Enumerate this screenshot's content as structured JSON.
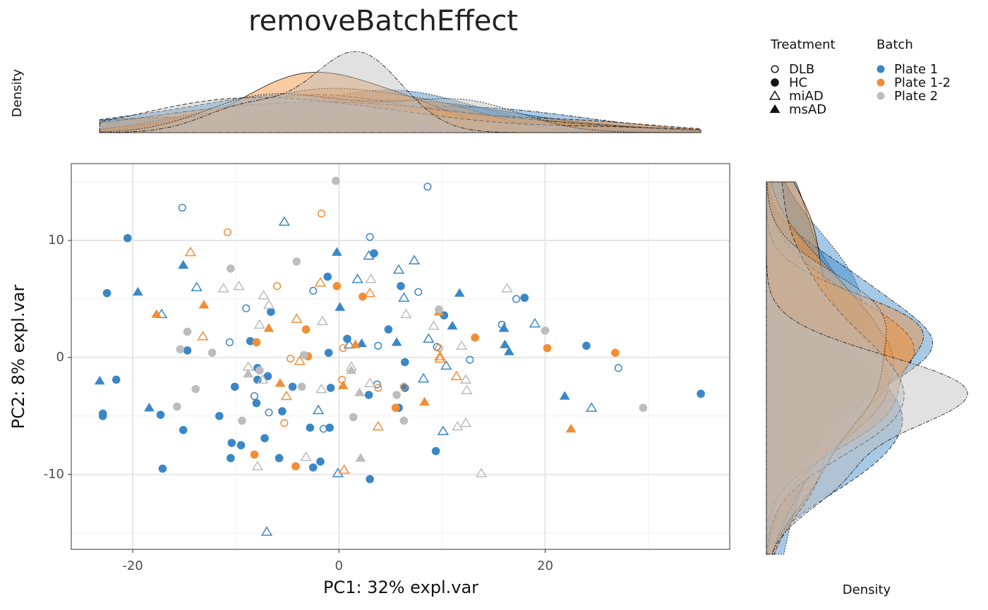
{
  "chart_data": {
    "type": "scatter",
    "title": "removeBatchEffect",
    "x_label": "PC1: 32% expl.var",
    "y_label": "PC2: 8% expl.var",
    "top_density_label": "Density",
    "right_density_label": "Density",
    "xlim": [
      -25.96,
      37.9
    ],
    "ylim": [
      -16.4,
      16.57
    ],
    "xticks": [
      -20,
      0,
      20
    ],
    "yticks": [
      -10,
      0,
      10
    ],
    "x_minor_ticks": [
      -10,
      10,
      30
    ],
    "y_minor_ticks": [
      -15,
      -5,
      5,
      15
    ],
    "grid": true,
    "treatment_title": "Treatment",
    "batch_title": "Batch",
    "treatments": [
      {
        "name": "DLB",
        "shape": "open-circle",
        "linetype": "solid"
      },
      {
        "name": "HC",
        "shape": "filled-circle",
        "linetype": "dashed"
      },
      {
        "name": "miAD",
        "shape": "open-triangle",
        "linetype": "dotted"
      },
      {
        "name": "msAD",
        "shape": "filled-triangle",
        "linetype": "dotdash"
      }
    ],
    "series": [
      {
        "name": "Plate 1",
        "color": "#3a87c8",
        "x": [
          -15.2,
          -20.5,
          -22.5,
          -15.1,
          -19.5,
          -17.2,
          -13.8,
          -14.7,
          -23.2,
          -21.6,
          -22.9,
          -22.9,
          -18.4,
          -17.3,
          -15.1,
          -17.1,
          -11.6,
          -10.1,
          -10.4,
          -9.5,
          -10.5,
          -10.6,
          -9.0,
          -8.6,
          -7.9,
          -7.9,
          -8.2,
          -8.0,
          -6.9,
          -6.8,
          -7.2,
          -6.6,
          -5.3,
          -5.5,
          -5.8,
          -4.5,
          -7.0,
          -2.5,
          -1.1,
          -1.0,
          -0.8,
          -2.0,
          -2.8,
          -1.5,
          -0.9,
          -1.8,
          -2.5,
          -0.2,
          0.1,
          -0.1,
          3.0,
          2.9,
          3.4,
          1.8,
          0.8,
          1.0,
          2.2,
          3.8,
          3.7,
          2.9,
          3.0,
          5.8,
          6.0,
          6.3,
          4.8,
          5.6,
          6.4,
          6.4,
          5.8,
          8.6,
          7.3,
          7.7,
          8.7,
          9.5,
          10.2,
          11.0,
          11.7,
          10.4,
          8.2,
          10.1,
          9.4,
          12.7,
          15.8,
          16.0,
          16.1,
          16.5,
          17.2,
          18.0,
          19.0,
          24.0,
          21.9,
          24.5,
          27.1,
          35.1
        ],
        "y": [
          12.8,
          10.2,
          5.5,
          7.9,
          5.6,
          3.7,
          6.0,
          0.6,
          -2.0,
          -1.9,
          -4.8,
          -5.0,
          -4.3,
          -4.9,
          -6.2,
          -9.5,
          -5.0,
          -2.5,
          -7.3,
          -7.5,
          -8.6,
          1.3,
          4.2,
          1.4,
          -0.9,
          -1.9,
          -3.3,
          -3.9,
          -1.6,
          -4.7,
          -6.9,
          3.9,
          11.6,
          -4.6,
          -8.6,
          -2.5,
          -14.9,
          5.7,
          6.9,
          0.4,
          -2.6,
          -4.5,
          -6.0,
          -6.1,
          -6.0,
          -8.9,
          -9.4,
          9.0,
          4.3,
          -9.9,
          10.3,
          8.7,
          8.9,
          6.7,
          1.6,
          1.1,
          1.2,
          1.0,
          -2.3,
          -3.2,
          -10.4,
          7.5,
          6.1,
          5.1,
          2.4,
          1.3,
          -0.4,
          -2.6,
          -4.3,
          14.6,
          8.3,
          5.6,
          1.6,
          0.9,
          3.6,
          2.7,
          5.5,
          -0.7,
          -1.8,
          -6.3,
          -8.0,
          -0.2,
          2.8,
          2.5,
          1.1,
          0.5,
          5.0,
          5.1,
          2.9,
          1.0,
          -3.3,
          -4.3,
          -0.9,
          -3.1
        ],
        "treatment": [
          "DLB",
          "HC",
          "HC",
          "msAD",
          "msAD",
          "miAD",
          "miAD",
          "HC",
          "msAD",
          "HC",
          "HC",
          "HC",
          "msAD",
          "HC",
          "HC",
          "HC",
          "HC",
          "HC",
          "HC",
          "HC",
          "HC",
          "DLB",
          "DLB",
          "HC",
          "HC",
          "HC",
          "DLB",
          "HC",
          "HC",
          "DLB",
          "HC",
          "HC",
          "miAD",
          "HC",
          "HC",
          "HC",
          "miAD",
          "DLB",
          "HC",
          "HC",
          "HC",
          "miAD",
          "HC",
          "DLB",
          "HC",
          "HC",
          "HC",
          "msAD",
          "msAD",
          "miAD",
          "DLB",
          "miAD",
          "HC",
          "miAD",
          "HC",
          "miAD",
          "msAD",
          "DLB",
          "DLB",
          "HC",
          "HC",
          "miAD",
          "HC",
          "miAD",
          "HC",
          "msAD",
          "HC",
          "HC",
          "HC",
          "DLB",
          "miAD",
          "DLB",
          "miAD",
          "DLB",
          "HC",
          "msAD",
          "msAD",
          "miAD",
          "miAD",
          "miAD",
          "HC",
          "DLB",
          "DLB",
          "msAD",
          "msAD",
          "msAD",
          "DLB",
          "HC",
          "miAD",
          "HC",
          "msAD",
          "miAD",
          "DLB",
          "HC"
        ]
      },
      {
        "name": "Plate 1-2",
        "color": "#f28e35",
        "x": [
          -14.4,
          -17.7,
          -13.1,
          -13.2,
          -10.8,
          -8.0,
          -6.0,
          -6.8,
          -4.7,
          -4.1,
          -3.8,
          -5.1,
          -5.7,
          -5.3,
          -8.2,
          -4.2,
          -3.2,
          -3.0,
          -1.7,
          -1.8,
          -0.2,
          0.4,
          0.3,
          0.4,
          0.5,
          1.6,
          2.3,
          3.0,
          3.8,
          3.8,
          6.3,
          5.5,
          8.3,
          9.7,
          9.7,
          9.8,
          9.8,
          11.4,
          13.2,
          20.2,
          22.5,
          26.8
        ],
        "y": [
          9.0,
          3.7,
          4.5,
          1.8,
          10.7,
          1.3,
          6.1,
          2.5,
          -0.1,
          3.3,
          -0.3,
          -3.3,
          -2.2,
          -5.6,
          -8.3,
          -9.3,
          2.4,
          0.1,
          12.3,
          6.4,
          6.1,
          0.8,
          -1.9,
          -2.4,
          -9.6,
          1.1,
          5.2,
          5.5,
          -2.6,
          -5.9,
          -2.5,
          -4.3,
          -3.8,
          3.9,
          0.8,
          0.1,
          -0.1,
          -1.6,
          1.7,
          0.8,
          -6.1,
          0.4
        ],
        "treatment": [
          "miAD",
          "msAD",
          "msAD",
          "miAD",
          "DLB",
          "HC",
          "DLB",
          "msAD",
          "DLB",
          "miAD",
          "miAD",
          "miAD",
          "msAD",
          "DLB",
          "HC",
          "HC",
          "HC",
          "HC",
          "DLB",
          "miAD",
          "HC",
          "DLB",
          "DLB",
          "msAD",
          "miAD",
          "msAD",
          "HC",
          "miAD",
          "DLB",
          "miAD",
          "DLB",
          "HC",
          "msAD",
          "msAD",
          "DLB",
          "miAD",
          "miAD",
          "miAD",
          "HC",
          "HC",
          "msAD",
          "HC"
        ]
      },
      {
        "name": "Plate 2",
        "color": "#bdbdbd",
        "x": [
          -10.5,
          -11.2,
          -9.7,
          -14.7,
          -15.4,
          -12.3,
          -13.9,
          -15.7,
          -7.3,
          -6.8,
          -7.7,
          -8.8,
          -8.8,
          -7.7,
          -7.4,
          -9.4,
          -7.9,
          -4.1,
          -1.6,
          -3.4,
          -3.6,
          -1.7,
          -3.2,
          -0.3,
          3.1,
          1.2,
          1.2,
          3.0,
          2.0,
          1.4,
          2.1,
          5.6,
          6.3,
          6.5,
          9.2,
          9.7,
          11.9,
          12.3,
          12.4,
          12.3,
          11.5,
          13.8,
          16.3,
          20.0,
          29.5
        ],
        "y": [
          7.6,
          5.9,
          6.1,
          2.2,
          0.7,
          0.4,
          -2.7,
          -4.2,
          5.3,
          4.5,
          2.8,
          -0.8,
          -1.4,
          -1.1,
          -1.9,
          -5.4,
          -9.3,
          8.2,
          3.1,
          0.2,
          -2.5,
          -2.7,
          -8.5,
          15.1,
          6.7,
          -0.8,
          -1.1,
          -2.2,
          -3.0,
          -5.1,
          -8.6,
          -3.2,
          -5.4,
          3.7,
          2.7,
          4.1,
          1.0,
          -1.9,
          -2.8,
          -5.6,
          -5.9,
          -9.9,
          5.9,
          2.3,
          -4.3
        ],
        "treatment": [
          "HC",
          "miAD",
          "miAD",
          "HC",
          "HC",
          "HC",
          "HC",
          "HC",
          "miAD",
          "miAD",
          "miAD",
          "miAD",
          "msAD",
          "HC",
          "miAD",
          "HC",
          "miAD",
          "HC",
          "miAD",
          "HC",
          "HC",
          "miAD",
          "miAD",
          "HC",
          "miAD",
          "miAD",
          "msAD",
          "miAD",
          "msAD",
          "HC",
          "msAD",
          "HC",
          "HC",
          "miAD",
          "miAD",
          "HC",
          "miAD",
          "miAD",
          "miAD",
          "miAD",
          "miAD",
          "miAD",
          "miAD",
          "HC",
          "HC"
        ]
      }
    ]
  }
}
